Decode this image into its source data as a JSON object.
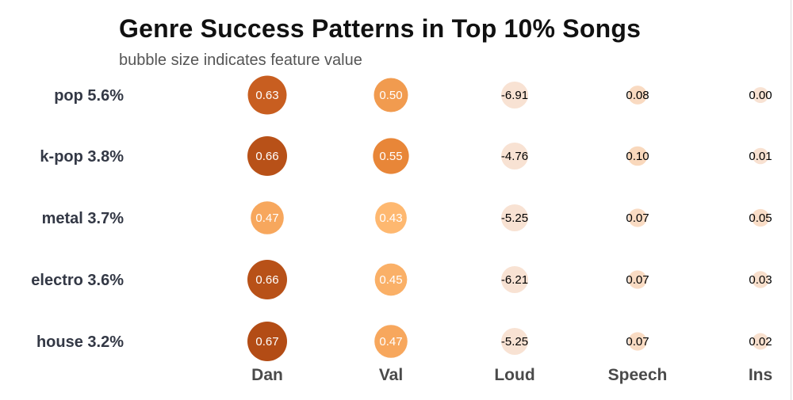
{
  "chart_data": {
    "type": "bubble-matrix",
    "title": "Genre Success Patterns in Top 10% Songs",
    "subtitle": "bubble size indicates feature value",
    "rows": [
      {
        "genre": "pop",
        "share": "5.6%",
        "label": "pop 5.6%"
      },
      {
        "genre": "k-pop",
        "share": "3.8%",
        "label": "k-pop 3.8%"
      },
      {
        "genre": "metal",
        "share": "3.7%",
        "label": "metal 3.7%"
      },
      {
        "genre": "electro",
        "share": "3.6%",
        "label": "electro 3.6%"
      },
      {
        "genre": "house",
        "share": "3.2%",
        "label": "house 3.2%"
      }
    ],
    "columns": [
      "Dan",
      "Val",
      "Loud",
      "Speech",
      "Ins"
    ],
    "values": [
      [
        "0.63",
        "0.50",
        "-6.91",
        "0.08",
        "0.00"
      ],
      [
        "0.66",
        "0.55",
        "-4.76",
        "0.10",
        "0.01"
      ],
      [
        "0.47",
        "0.43",
        "-5.25",
        "0.07",
        "0.05"
      ],
      [
        "0.66",
        "0.45",
        "-6.21",
        "0.07",
        "0.03"
      ],
      [
        "0.67",
        "0.47",
        "-5.25",
        "0.07",
        "0.02"
      ]
    ],
    "colors": {
      "dark": "#b9531a",
      "mid": "#e8883b",
      "light": "#fdb46c",
      "pale": "#f8e2d3",
      "text_on_dark": "#ffffff",
      "text_on_light": "#000000"
    }
  }
}
